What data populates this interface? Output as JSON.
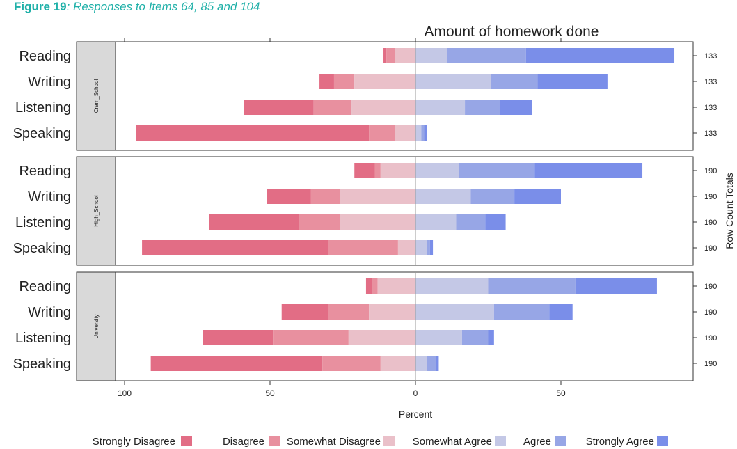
{
  "figure_label": {
    "number": "Figure 19",
    "caption": ": Responses to Items 64, 85 and 104"
  },
  "chart_data": {
    "type": "bar",
    "subtype": "diverging-stacked-horizontal",
    "title": "Amount of homework done",
    "xlabel": "Percent",
    "right_axis_label": "Row Count Totals",
    "xlim": [
      -100,
      100
    ],
    "x_ticks": [
      {
        "value": -100,
        "label": "100"
      },
      {
        "value": -50,
        "label": "50"
      },
      {
        "value": 0,
        "label": "0"
      },
      {
        "value": 50,
        "label": "50"
      }
    ],
    "levels": [
      "Strongly Disagree",
      "Disagree",
      "Somewhat Disagree",
      "Somewhat Agree",
      "Agree",
      "Strongly Agree"
    ],
    "colors": [
      "#e26d85",
      "#e8909f",
      "#eac0c9",
      "#c4c8e6",
      "#97a6e6",
      "#7a8ee9"
    ],
    "panels": [
      {
        "name": "Cram_School",
        "rows": [
          {
            "label": "Reading",
            "total": "133",
            "values": [
              1,
              3,
              7,
              11,
              27,
              51
            ]
          },
          {
            "label": "Writing",
            "total": "133",
            "values": [
              5,
              7,
              21,
              26,
              16,
              24
            ]
          },
          {
            "label": "Listening",
            "total": "133",
            "values": [
              24,
              13,
              22,
              17,
              12,
              11
            ]
          },
          {
            "label": "Speaking",
            "total": "133",
            "values": [
              80,
              9,
              7,
              2,
              1,
              1
            ]
          }
        ]
      },
      {
        "name": "High_School",
        "rows": [
          {
            "label": "Reading",
            "total": "190",
            "values": [
              7,
              2,
              12,
              15,
              26,
              37
            ]
          },
          {
            "label": "Writing",
            "total": "190",
            "values": [
              15,
              10,
              26,
              19,
              15,
              16
            ]
          },
          {
            "label": "Listening",
            "total": "190",
            "values": [
              31,
              14,
              26,
              14,
              10,
              7
            ]
          },
          {
            "label": "Speaking",
            "total": "190",
            "values": [
              64,
              24,
              6,
              4,
              1,
              1
            ]
          }
        ]
      },
      {
        "name": "University",
        "rows": [
          {
            "label": "Reading",
            "total": "190",
            "values": [
              2,
              2,
              13,
              25,
              30,
              28
            ]
          },
          {
            "label": "Writing",
            "total": "190",
            "values": [
              16,
              14,
              16,
              27,
              19,
              8
            ]
          },
          {
            "label": "Listening",
            "total": "190",
            "values": [
              24,
              26,
              23,
              16,
              9,
              2
            ]
          },
          {
            "label": "Speaking",
            "total": "190",
            "values": [
              59,
              20,
              12,
              4,
              3,
              1
            ]
          }
        ]
      }
    ],
    "grid": false,
    "legend_position": "bottom"
  }
}
